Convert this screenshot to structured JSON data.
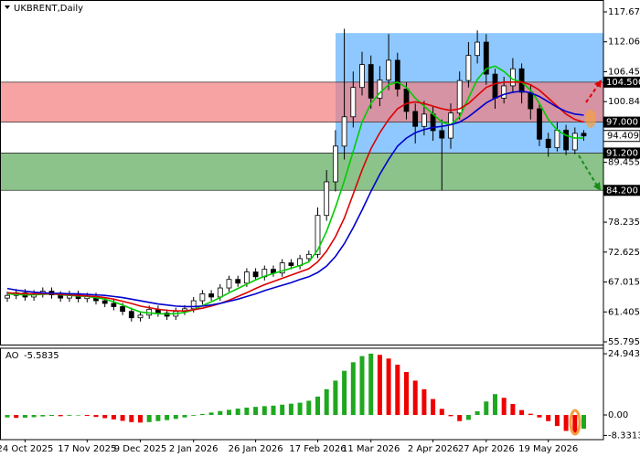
{
  "chart_data": [
    {
      "type": "candlestick",
      "title": "UKBRENT,Daily",
      "categories": [
        null,
        null,
        "24 Oct 2025",
        null,
        null,
        null,
        null,
        null,
        null,
        "17 Nov 2025",
        null,
        null,
        null,
        null,
        null,
        "9 Dec 2025",
        null,
        null,
        null,
        null,
        null,
        "2 Jan 2026",
        null,
        null,
        null,
        null,
        null,
        null,
        "26 Jan 2026",
        null,
        null,
        null,
        null,
        null,
        null,
        "17 Feb 2026",
        null,
        null,
        null,
        null,
        null,
        "11 Mar 2026",
        null,
        null,
        null,
        null,
        null,
        null,
        "2 Apr 2026",
        null,
        null,
        null,
        null,
        null,
        "27 Apr 2026",
        null,
        null,
        null,
        null,
        null,
        null,
        "19 May 2026",
        null,
        null,
        null,
        null
      ],
      "open": [
        64.0,
        64.5,
        65.0,
        64.2,
        64.8,
        65.3,
        64.6,
        64.0,
        64.7,
        63.9,
        64.3,
        63.5,
        63.0,
        62.4,
        61.5,
        60.3,
        60.8,
        61.9,
        61.2,
        60.6,
        61.5,
        62.0,
        63.5,
        64.8,
        64.2,
        65.9,
        67.5,
        66.8,
        68.9,
        68.0,
        69.4,
        68.7,
        70.6,
        70.1,
        71.4,
        72.2,
        79.5,
        85.8,
        92.5,
        98.0,
        103.5,
        107.8,
        101.5,
        104.9,
        108.6,
        103.2,
        99.0,
        96.2,
        98.5,
        95.4,
        94.0,
        98.7,
        104.8,
        109.5,
        112.0,
        106.0,
        101.5,
        103.8,
        107.0,
        102.6,
        99.5,
        93.8,
        92.2,
        95.5,
        91.8,
        94.9
      ],
      "high": [
        65.2,
        65.7,
        65.7,
        65.5,
        66.0,
        66.0,
        65.3,
        65.4,
        65.4,
        65.0,
        65.0,
        64.2,
        63.7,
        63.1,
        62.2,
        61.5,
        62.6,
        62.6,
        61.9,
        62.2,
        62.7,
        64.2,
        65.5,
        65.5,
        66.6,
        68.2,
        68.2,
        69.6,
        69.6,
        70.1,
        70.1,
        71.3,
        71.3,
        72.1,
        72.9,
        81.0,
        88.0,
        95.5,
        114.5,
        106.5,
        110.2,
        109.5,
        107.5,
        113.5,
        110.0,
        104.5,
        100.5,
        101.0,
        100.0,
        97.5,
        100.5,
        106.5,
        112.0,
        114.2,
        113.5,
        107.0,
        105.5,
        109.0,
        108.0,
        104.0,
        100.5,
        95.0,
        97.0,
        96.5,
        96.0,
        95.5
      ],
      "low": [
        63.3,
        63.8,
        63.5,
        63.5,
        64.1,
        63.9,
        63.3,
        63.3,
        63.2,
        63.2,
        62.8,
        62.3,
        61.7,
        60.8,
        59.6,
        59.6,
        60.1,
        60.5,
        59.9,
        59.9,
        60.8,
        61.3,
        62.8,
        63.5,
        63.5,
        65.2,
        66.1,
        66.1,
        67.3,
        67.3,
        68.0,
        68.0,
        69.4,
        69.4,
        70.7,
        71.5,
        78.5,
        84.0,
        90.0,
        96.0,
        102.0,
        99.5,
        100.0,
        103.0,
        101.8,
        97.5,
        93.0,
        94.5,
        93.5,
        84.2,
        92.0,
        97.5,
        103.5,
        108.0,
        104.0,
        99.5,
        100.5,
        102.5,
        100.5,
        97.5,
        92.5,
        90.5,
        91.5,
        90.8,
        91.0,
        93.5
      ],
      "close": [
        64.5,
        65.0,
        64.2,
        64.8,
        65.3,
        64.6,
        64.0,
        64.7,
        63.9,
        64.3,
        63.5,
        63.0,
        62.4,
        61.5,
        60.3,
        60.8,
        61.9,
        61.2,
        60.6,
        61.5,
        62.0,
        63.5,
        64.8,
        64.2,
        65.9,
        67.5,
        66.8,
        68.9,
        68.0,
        69.4,
        68.7,
        70.6,
        70.1,
        71.4,
        72.2,
        79.5,
        85.8,
        92.5,
        98.0,
        103.5,
        107.8,
        101.5,
        104.9,
        108.6,
        103.2,
        99.0,
        96.2,
        98.5,
        95.4,
        94.0,
        98.7,
        104.8,
        109.5,
        112.0,
        106.0,
        101.5,
        103.8,
        107.0,
        102.6,
        99.5,
        93.8,
        92.2,
        95.5,
        91.8,
        94.9,
        94.409
      ],
      "up_color": "#ffffff",
      "down_color": "#000000",
      "series": [
        {
          "color": "#00cc00",
          "values": [
            64.8,
            64.7,
            64.6,
            64.6,
            64.7,
            64.8,
            64.6,
            64.5,
            64.4,
            64.3,
            64.1,
            63.8,
            63.3,
            62.7,
            62.0,
            61.4,
            61.2,
            61.1,
            61.0,
            61.1,
            61.3,
            61.8,
            62.6,
            63.3,
            64.1,
            65.0,
            65.8,
            66.6,
            67.4,
            68.1,
            68.6,
            69.1,
            69.6,
            70.1,
            70.8,
            73.0,
            76.5,
            81.0,
            86.0,
            91.5,
            97.0,
            100.5,
            102.5,
            104.0,
            104.5,
            103.5,
            101.5,
            100.0,
            98.5,
            97.0,
            96.5,
            98.0,
            101.5,
            105.0,
            107.0,
            107.5,
            106.5,
            105.0,
            104.5,
            103.0,
            100.5,
            97.5,
            95.5,
            94.5,
            94.0,
            94.0
          ]
        },
        {
          "color": "#dd0000",
          "values": [
            65.0,
            64.9,
            64.8,
            64.8,
            64.8,
            64.8,
            64.7,
            64.6,
            64.5,
            64.4,
            64.3,
            64.1,
            63.8,
            63.4,
            63.0,
            62.5,
            62.2,
            61.9,
            61.7,
            61.6,
            61.6,
            61.8,
            62.1,
            62.5,
            63.0,
            63.6,
            64.3,
            65.0,
            65.8,
            66.5,
            67.1,
            67.7,
            68.3,
            68.9,
            69.5,
            70.8,
            72.8,
            75.5,
            79.0,
            83.5,
            88.0,
            92.0,
            95.0,
            97.5,
            99.5,
            100.5,
            100.8,
            100.5,
            100.0,
            99.5,
            99.2,
            99.5,
            100.5,
            102.0,
            103.5,
            104.2,
            104.5,
            104.5,
            104.5,
            104.0,
            103.0,
            101.5,
            100.0,
            98.5,
            97.5,
            97.0
          ]
        },
        {
          "color": "#0000cc",
          "values": [
            65.8,
            65.5,
            65.3,
            65.1,
            65.0,
            64.9,
            64.9,
            64.8,
            64.8,
            64.7,
            64.6,
            64.5,
            64.3,
            64.1,
            63.8,
            63.5,
            63.2,
            62.9,
            62.7,
            62.5,
            62.4,
            62.4,
            62.5,
            62.7,
            63.0,
            63.4,
            63.8,
            64.3,
            64.8,
            65.4,
            65.9,
            66.4,
            66.9,
            67.5,
            68.0,
            68.8,
            70.0,
            71.8,
            74.2,
            77.2,
            80.5,
            84.0,
            87.2,
            90.0,
            92.5,
            94.0,
            95.0,
            95.6,
            96.0,
            96.2,
            96.5,
            97.0,
            98.0,
            99.3,
            100.6,
            101.5,
            102.2,
            102.6,
            102.8,
            102.5,
            101.8,
            100.8,
            99.8,
            99.0,
            98.5,
            98.3
          ]
        }
      ],
      "zones": [
        {
          "low": {
            "value": 97,
            "label": "97.000"
          },
          "high": {
            "value": 104.5,
            "label": "104.500"
          },
          "color": "#f47c7c"
        },
        {
          "low": {
            "value": 84.2,
            "label": "84.200"
          },
          "high": {
            "value": 91.2,
            "label": "91.200"
          },
          "color": "#5aaa5a"
        }
      ],
      "range_box": {
        "low": 91.2,
        "high": 113.7,
        "color": "#8ec8ff"
      },
      "ylim": [
        55.28,
        119.9
      ],
      "yticks": [
        117.675,
        {
          "value": 112.06,
          "label": "112.060"
        },
        {
          "value": 106.45,
          "label": "106.450"
        },
        {
          "value": 100.84,
          "label": "100.840"
        },
        89.455,
        78.235,
        72.625,
        67.015,
        61.405,
        55.795
      ]
    },
    {
      "type": "bar",
      "title": "AO",
      "values": [
        -1.0,
        -1.2,
        -1.1,
        -0.9,
        -0.6,
        -0.4,
        -0.5,
        -0.3,
        -0.2,
        -0.4,
        -0.8,
        -1.3,
        -1.8,
        -2.4,
        -2.9,
        -3.1,
        -2.9,
        -2.5,
        -2.1,
        -1.6,
        -1.0,
        -0.3,
        0.4,
        1.0,
        1.6,
        2.1,
        2.6,
        3.0,
        3.3,
        3.6,
        3.8,
        4.2,
        4.6,
        5.0,
        5.8,
        7.5,
        10.5,
        14.0,
        18.0,
        21.5,
        24.0,
        25.0,
        24.5,
        23.0,
        20.5,
        17.5,
        14.0,
        10.5,
        6.5,
        2.5,
        -0.5,
        -2.5,
        -2.0,
        1.5,
        5.5,
        8.5,
        7.0,
        4.5,
        2.0,
        0.5,
        -1.0,
        -2.5,
        -4.5,
        -6.5,
        -7.8,
        -5.5835
      ],
      "up_color": "#1fa81f",
      "down_color": "#ee0000",
      "ylim": [
        -10.05,
        27.2
      ],
      "yticks": [
        24.9434,
        {
          "value": 0,
          "label": "0.00"
        },
        -8.3313
      ]
    }
  ]
}
